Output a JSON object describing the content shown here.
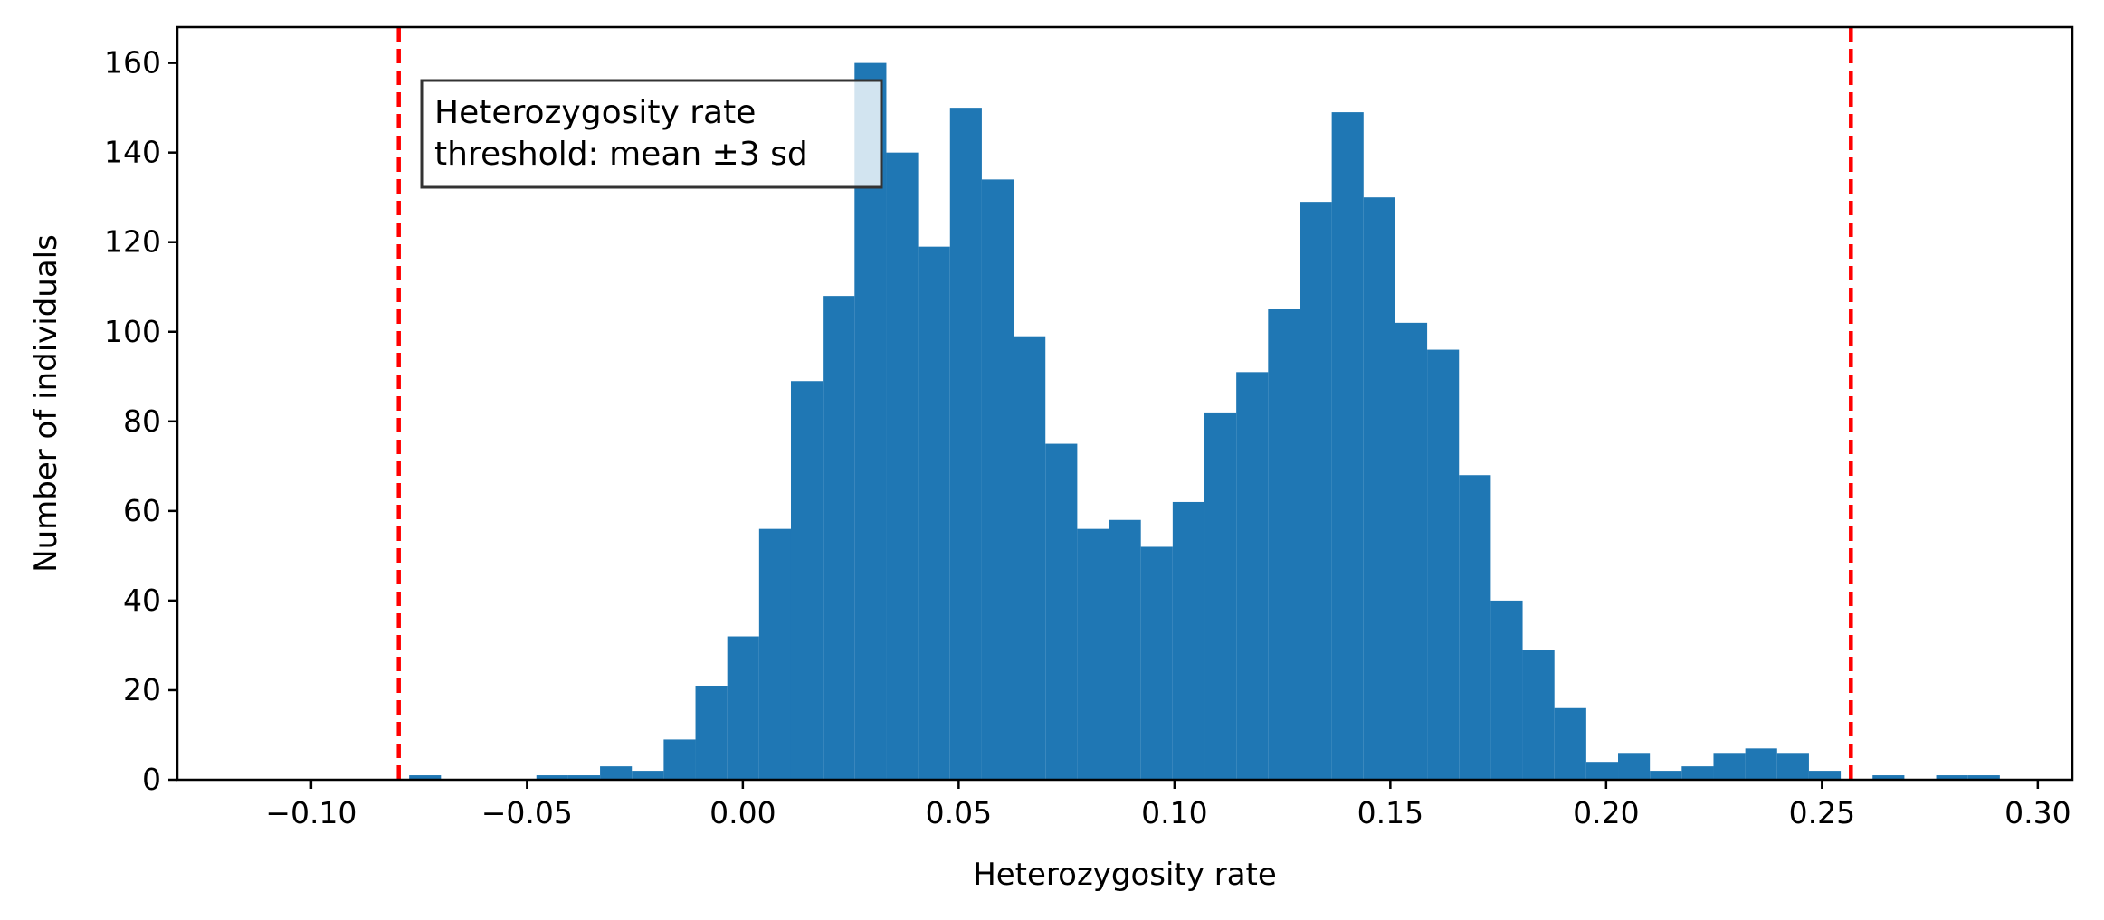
{
  "chart_data": {
    "type": "bar",
    "xlabel": "Heterozygosity rate",
    "ylabel": "Number of individuals",
    "xlim": [
      -0.131,
      0.308
    ],
    "ylim": [
      0,
      168
    ],
    "grid": false,
    "x_ticks": [
      -0.1,
      -0.05,
      0.0,
      0.05,
      0.1,
      0.15,
      0.2,
      0.25,
      0.3
    ],
    "x_tick_labels": [
      "−0.10",
      "−0.05",
      "0.00",
      "0.05",
      "0.10",
      "0.15",
      "0.20",
      "0.25",
      "0.30"
    ],
    "y_ticks": [
      0,
      20,
      40,
      60,
      80,
      100,
      120,
      140,
      160
    ],
    "y_tick_labels": [
      "0",
      "20",
      "40",
      "60",
      "80",
      "100",
      "120",
      "140",
      "160"
    ],
    "bin_start": -0.0773,
    "bin_width": 0.00737,
    "counts": [
      1,
      0,
      0,
      0,
      1,
      1,
      3,
      2,
      9,
      21,
      32,
      56,
      89,
      108,
      160,
      140,
      119,
      150,
      134,
      99,
      75,
      56,
      58,
      52,
      62,
      82,
      91,
      105,
      129,
      149,
      130,
      102,
      96,
      68,
      40,
      29,
      16,
      4,
      6,
      2,
      3,
      6,
      7,
      6,
      2,
      0,
      1,
      0,
      1,
      1
    ],
    "bar_color": "#1f77b4",
    "threshold_lines": [
      {
        "x": -0.0797,
        "color": "#ff0000"
      },
      {
        "x": 0.2567,
        "color": "#ff0000"
      }
    ],
    "annotation": {
      "lines": [
        "Heterozygosity rate",
        "threshold: mean ±3 sd"
      ]
    }
  }
}
